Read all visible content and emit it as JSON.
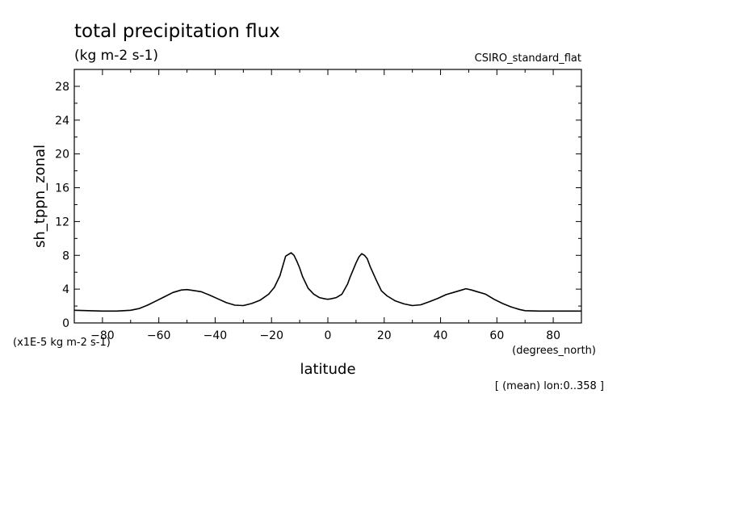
{
  "chart_data": {
    "type": "line",
    "title": "total precipitation flux",
    "subtitle": "(kg m-2 s-1)",
    "dataset": "CSIRO_standard_flat",
    "xlabel": "latitude",
    "xunits": "(degrees_north)",
    "ylabel": "sh_tppn_zonal",
    "yunits": "(x1E-5 kg m-2 s-1)",
    "footnote": "[ (mean) lon:0..358 ]",
    "xlim": [
      -90,
      90
    ],
    "ylim": [
      0,
      30
    ],
    "xticks": [
      -80,
      -60,
      -40,
      -20,
      0,
      20,
      40,
      60,
      80
    ],
    "yticks": [
      0,
      4,
      8,
      12,
      16,
      20,
      24,
      28
    ],
    "grid": false,
    "series": [
      {
        "x": [
          -90,
          -85,
          -80,
          -75,
          -70,
          -67,
          -64,
          -61,
          -58,
          -55,
          -52,
          -50,
          -48,
          -45,
          -42,
          -39,
          -36,
          -33,
          -30,
          -27,
          -24,
          -21,
          -19,
          -17,
          -15,
          -13,
          -12,
          -11,
          -10,
          -9,
          -7,
          -5,
          -3,
          -1,
          0,
          1,
          3,
          5,
          7,
          8,
          10,
          11,
          12,
          13,
          14,
          15,
          17,
          19,
          21,
          24,
          27,
          30,
          33,
          36,
          39,
          42,
          45,
          48,
          49,
          51,
          53,
          56,
          59,
          62,
          65,
          68,
          70,
          75,
          80,
          85,
          90
        ],
        "y": [
          1.5,
          1.45,
          1.4,
          1.4,
          1.5,
          1.7,
          2.1,
          2.6,
          3.1,
          3.6,
          3.9,
          3.95,
          3.85,
          3.7,
          3.3,
          2.85,
          2.4,
          2.1,
          2.05,
          2.3,
          2.7,
          3.4,
          4.2,
          5.6,
          7.9,
          8.3,
          8.0,
          7.3,
          6.5,
          5.5,
          4.1,
          3.4,
          3.0,
          2.85,
          2.8,
          2.85,
          3.0,
          3.4,
          4.6,
          5.5,
          7.1,
          7.8,
          8.2,
          8.0,
          7.6,
          6.7,
          5.2,
          3.8,
          3.2,
          2.6,
          2.25,
          2.05,
          2.15,
          2.5,
          2.9,
          3.35,
          3.65,
          3.95,
          4.05,
          3.9,
          3.7,
          3.4,
          2.8,
          2.3,
          1.9,
          1.6,
          1.45,
          1.4,
          1.4,
          1.4,
          1.4
        ]
      }
    ]
  }
}
